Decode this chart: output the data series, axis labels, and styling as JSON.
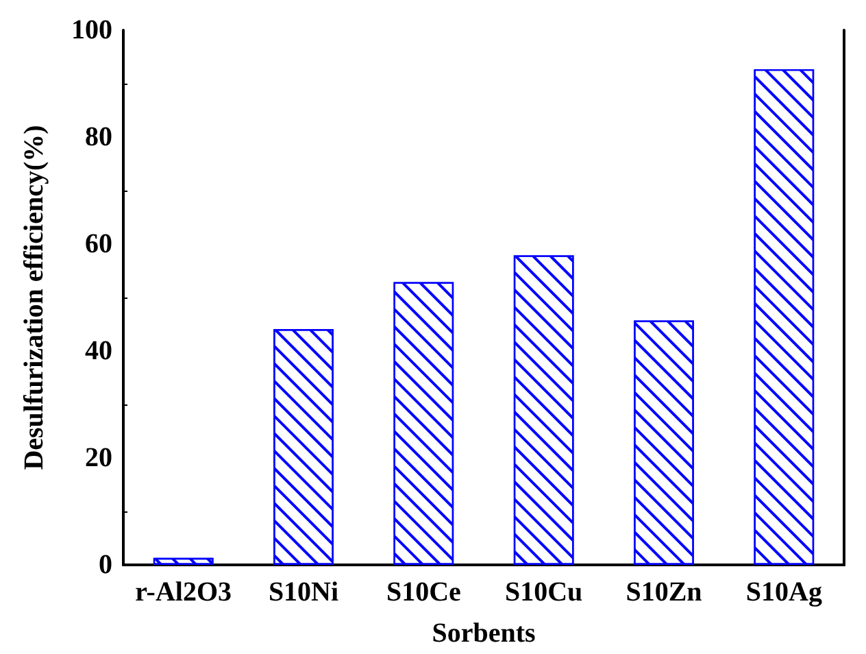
{
  "chart_data": {
    "type": "bar",
    "xlabel": "Sorbents",
    "ylabel": "Desulfurization efficiency(%)",
    "categories": [
      "r-Al2O3",
      "S10Ni",
      "S10Ce",
      "S10Cu",
      "S10Zn",
      "S10Ag"
    ],
    "values": [
      1.3,
      44.1,
      52.9,
      57.9,
      45.7,
      92.7
    ],
    "color": "#0000ff",
    "ylim": [
      0,
      100
    ],
    "yticks": [
      0,
      20,
      40,
      60,
      80,
      100
    ],
    "grid": false
  }
}
